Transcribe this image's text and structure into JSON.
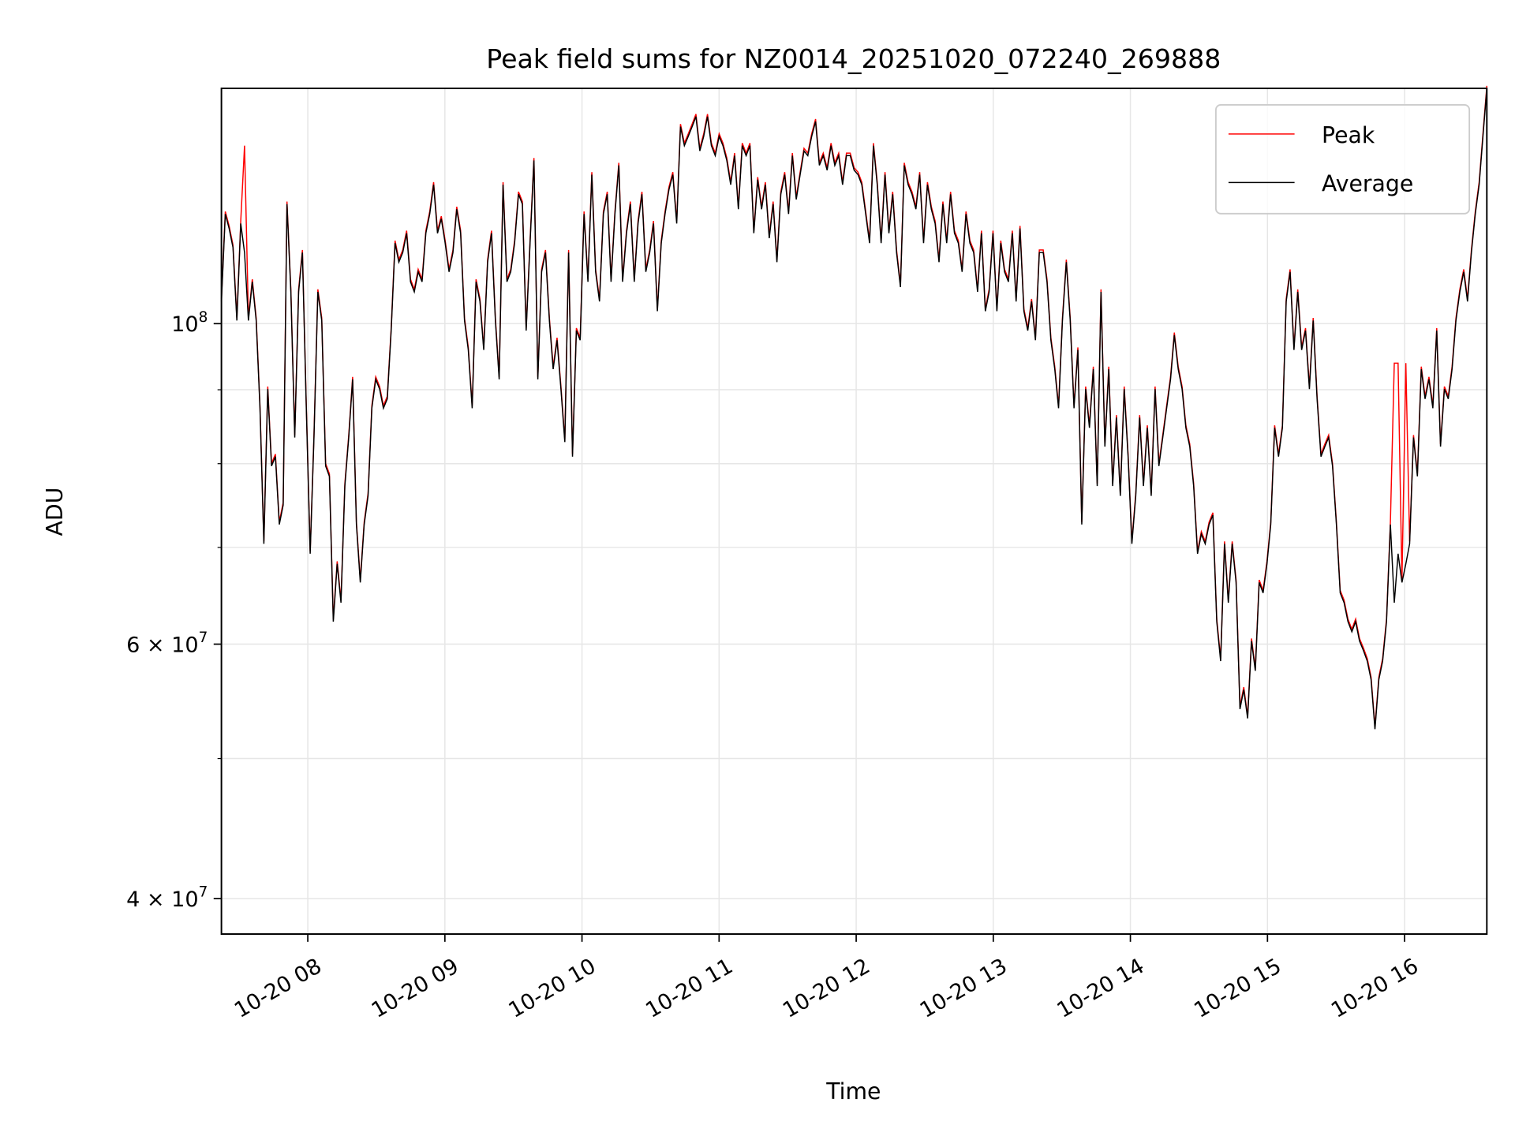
{
  "chart_data": {
    "type": "line",
    "title": "Peak field sums for NZ0014_20251020_072240_269888",
    "xlabel": "Time",
    "ylabel": "ADU",
    "yscale": "log",
    "ylim": [
      37800000,
      145500000
    ],
    "x_range_hours": [
      7.37,
      16.6
    ],
    "x_ticks": [
      {
        "hour": 8,
        "label": "10-20 08"
      },
      {
        "hour": 9,
        "label": "10-20 09"
      },
      {
        "hour": 10,
        "label": "10-20 10"
      },
      {
        "hour": 11,
        "label": "10-20 11"
      },
      {
        "hour": 12,
        "label": "10-20 12"
      },
      {
        "hour": 13,
        "label": "10-20 13"
      },
      {
        "hour": 14,
        "label": "10-20 14"
      },
      {
        "hour": 15,
        "label": "10-20 15"
      },
      {
        "hour": 16,
        "label": "10-20 16"
      }
    ],
    "y_major_ticks": [
      {
        "value": 100000000,
        "base": "10",
        "exp": "8",
        "mant": ""
      },
      {
        "value": 60000000,
        "base": "10",
        "exp": "7",
        "mant": "6 × "
      },
      {
        "value": 40000000,
        "base": "10",
        "exp": "7",
        "mant": "4 × "
      }
    ],
    "y_minor_ticks": [
      50000000,
      70000000,
      80000000,
      90000000
    ],
    "grid": true,
    "legend": {
      "placement": "top-right",
      "entries": [
        "Peak",
        "Average"
      ]
    },
    "colors": {
      "Peak": "#ff0000",
      "Average": "#000000"
    },
    "value_unit": 1000000,
    "t_start_h": 7.37,
    "t_end_h": 16.6,
    "average": [
      103.6,
      119.1,
      116.4,
      112.9,
      100.5,
      117.3,
      112.0,
      100.5,
      106.9,
      100.5,
      87.4,
      70.4,
      90.1,
      79.7,
      80.9,
      72.6,
      74.9,
      121.0,
      105.2,
      83.4,
      105.2,
      112.0,
      87.4,
      69.3,
      83.4,
      105.2,
      100.5,
      79.7,
      78.4,
      62.2,
      68.2,
      64.1,
      77.2,
      83.4,
      91.5,
      72.6,
      66.2,
      72.6,
      76.0,
      87.4,
      91.5,
      90.1,
      87.4,
      88.7,
      98.9,
      113.7,
      110.3,
      112.0,
      115.5,
      106.9,
      105.2,
      108.6,
      106.9,
      115.5,
      119.1,
      124.8,
      115.5,
      118.2,
      113.7,
      108.6,
      112.0,
      120.0,
      115.5,
      100.5,
      95.9,
      87.4,
      106.9,
      103.6,
      95.9,
      110.3,
      115.5,
      100.5,
      91.5,
      124.8,
      106.9,
      108.6,
      113.7,
      122.9,
      121.0,
      98.9,
      113.7,
      129.7,
      91.5,
      108.6,
      112.0,
      100.5,
      93.0,
      97.4,
      90.1,
      82.8,
      112.0,
      80.9,
      98.9,
      97.4,
      119.1,
      106.9,
      126.8,
      108.6,
      103.6,
      119.1,
      122.9,
      106.9,
      119.1,
      128.7,
      106.9,
      115.5,
      121.0,
      106.9,
      117.3,
      122.9,
      108.6,
      112.0,
      117.3,
      102.0,
      113.7,
      119.1,
      123.8,
      126.8,
      117.3,
      136.9,
      132.8,
      134.8,
      136.9,
      139.1,
      131.7,
      134.8,
      139.1,
      132.8,
      130.7,
      134.8,
      132.8,
      129.7,
      124.8,
      130.7,
      120.0,
      132.8,
      130.7,
      132.8,
      115.5,
      125.8,
      120.0,
      124.8,
      114.6,
      121.0,
      110.3,
      122.9,
      126.8,
      119.1,
      130.7,
      121.9,
      126.8,
      131.7,
      130.7,
      134.8,
      138.0,
      128.7,
      130.7,
      127.7,
      132.8,
      128.7,
      130.7,
      124.8,
      130.7,
      130.7,
      127.7,
      126.8,
      124.8,
      119.1,
      113.7,
      132.8,
      124.8,
      113.7,
      126.8,
      115.5,
      122.9,
      112.0,
      106.0,
      128.7,
      124.8,
      122.9,
      120.0,
      126.8,
      113.7,
      124.8,
      120.0,
      117.3,
      110.3,
      121.0,
      113.7,
      122.9,
      115.5,
      113.7,
      108.6,
      119.1,
      113.7,
      112.0,
      105.2,
      115.5,
      102.0,
      105.2,
      115.5,
      102.0,
      113.7,
      108.6,
      106.9,
      115.5,
      103.6,
      116.4,
      102.0,
      98.9,
      103.6,
      97.4,
      112.0,
      112.0,
      106.9,
      97.4,
      93.0,
      87.4,
      100.5,
      110.3,
      100.5,
      87.4,
      95.9,
      72.6,
      90.1,
      84.7,
      93.0,
      77.2,
      105.2,
      82.2,
      93.0,
      77.2,
      86.1,
      76.0,
      90.1,
      80.9,
      70.4,
      76.0,
      86.1,
      77.2,
      84.7,
      76.0,
      90.1,
      79.7,
      83.4,
      87.4,
      91.5,
      98.2,
      93.0,
      90.1,
      84.7,
      82.2,
      77.2,
      69.3,
      71.5,
      70.4,
      72.6,
      73.7,
      62.2,
      58.4,
      70.4,
      64.1,
      70.4,
      66.2,
      54.1,
      55.8,
      53.3,
      60.3,
      57.5,
      66.2,
      65.1,
      68.2,
      72.6,
      84.7,
      80.9,
      84.7,
      103.6,
      108.6,
      95.9,
      105.2,
      95.9,
      98.9,
      90.1,
      100.5,
      88.7,
      80.9,
      82.2,
      83.4,
      79.7,
      72.6,
      65.1,
      64.1,
      62.2,
      61.2,
      62.2,
      60.3,
      59.4,
      58.4,
      56.7,
      52.4,
      56.7,
      58.4,
      62.2,
      72.6,
      64.1,
      69.3,
      66.2,
      68.2,
      70.4,
      83.4,
      78.4,
      93.0,
      88.7,
      91.5,
      87.4,
      98.9,
      82.2,
      90.1,
      88.7,
      93.0,
      100.5,
      105.2,
      108.6,
      103.6,
      112.0,
      119.1,
      124.8,
      134.8,
      145.5
    ],
    "peak_deviations_from_average": [
      {
        "hour": 7.53,
        "value": 132.8
      },
      {
        "hour": 15.93,
        "value": 93.9
      },
      {
        "hour": 15.955,
        "value": 93.9
      },
      {
        "hour": 16.0,
        "value": 93.9
      }
    ]
  }
}
